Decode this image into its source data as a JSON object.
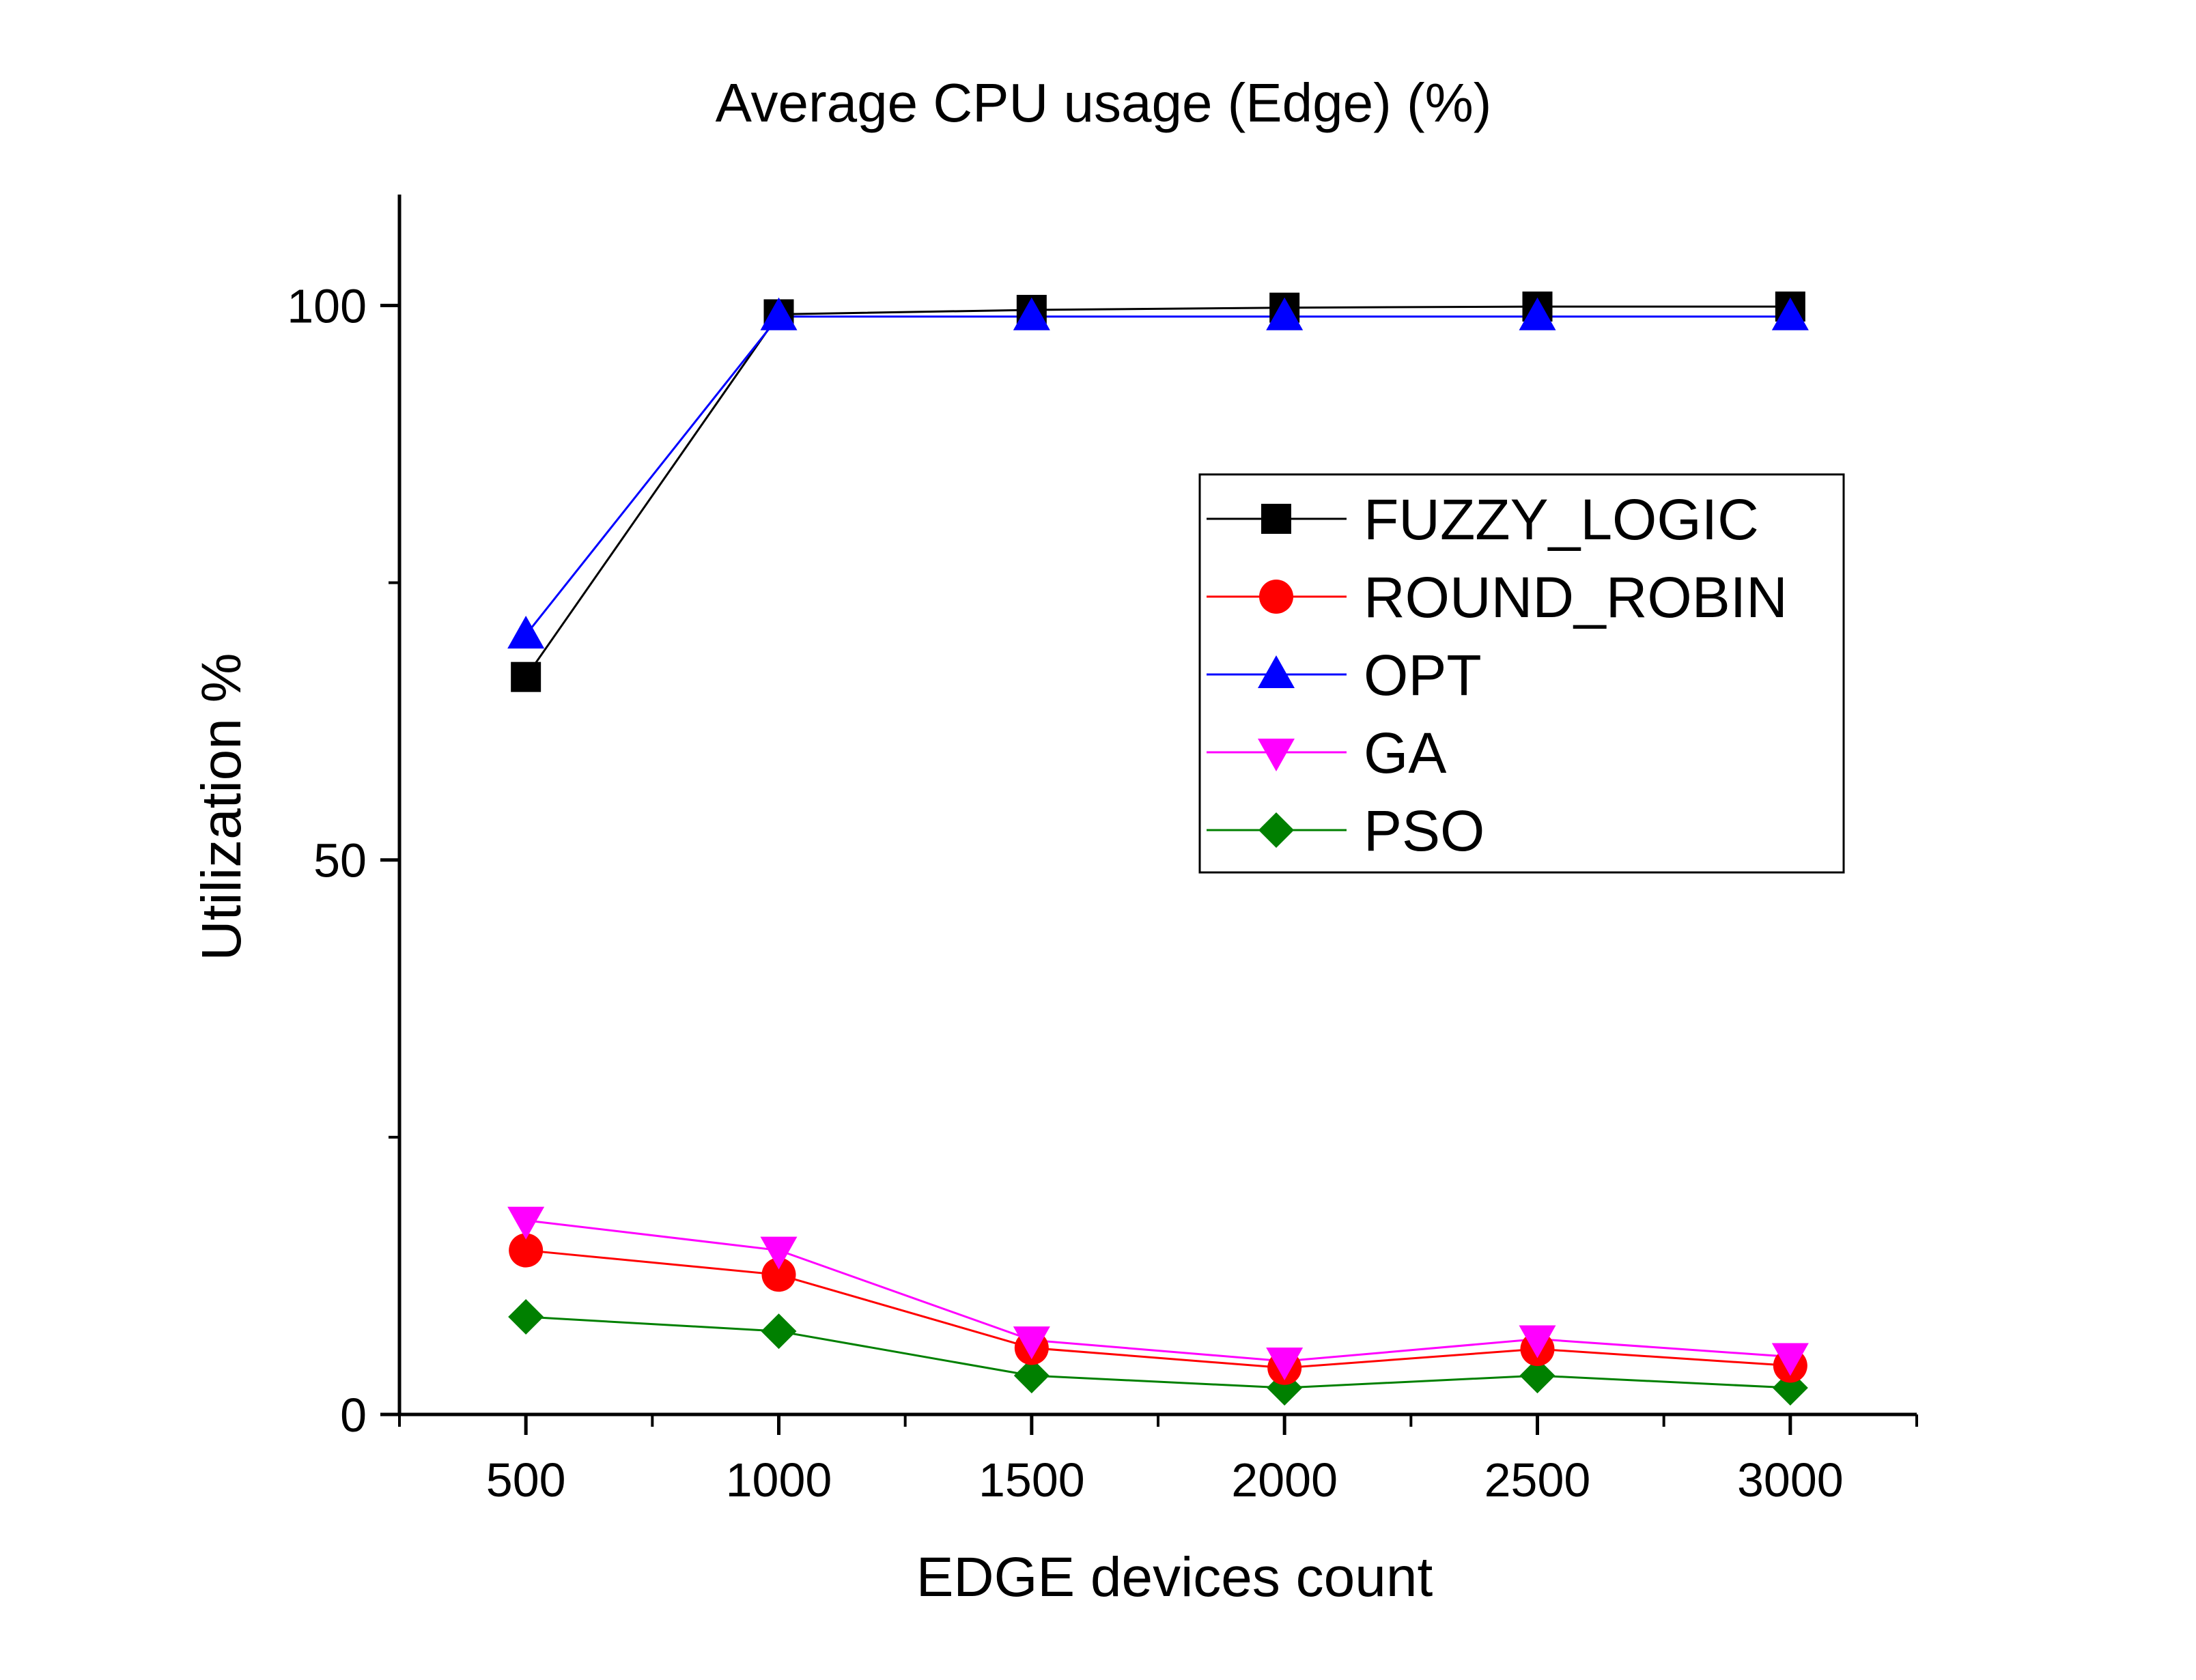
{
  "chart_data": {
    "type": "line",
    "title": "Average CPU usage (Edge) (%)",
    "xlabel": "EDGE devices count",
    "ylabel": "Utilization %",
    "x": [
      500,
      1000,
      1500,
      2000,
      2500,
      3000
    ],
    "xlim": [
      250,
      3250
    ],
    "ylim": [
      0,
      110
    ],
    "x_ticks": [
      "500",
      "1000",
      "1500",
      "2000",
      "2500",
      "3000"
    ],
    "y_ticks": [
      "0",
      "50",
      "100"
    ],
    "grid": false,
    "legend_position": "top-right",
    "series": [
      {
        "name": "FUZZY_LOGIC",
        "color": "#000000",
        "marker": "square",
        "values": [
          66.5,
          99.2,
          99.6,
          99.8,
          99.9,
          99.9
        ]
      },
      {
        "name": "ROUND_ROBIN",
        "color": "#ff0000",
        "marker": "circle",
        "values": [
          14.8,
          12.6,
          6.0,
          4.2,
          5.9,
          4.4
        ]
      },
      {
        "name": "OPT",
        "color": "#0000ff",
        "marker": "triangle-up",
        "values": [
          70.3,
          99.0,
          99.0,
          99.0,
          99.0,
          99.0
        ]
      },
      {
        "name": "GA",
        "color": "#ff00ff",
        "marker": "triangle-down",
        "values": [
          17.5,
          14.8,
          6.7,
          4.8,
          6.8,
          5.2
        ]
      },
      {
        "name": "PSO",
        "color": "#008000",
        "marker": "diamond",
        "values": [
          8.8,
          7.5,
          3.5,
          2.4,
          3.5,
          2.4
        ]
      }
    ]
  }
}
